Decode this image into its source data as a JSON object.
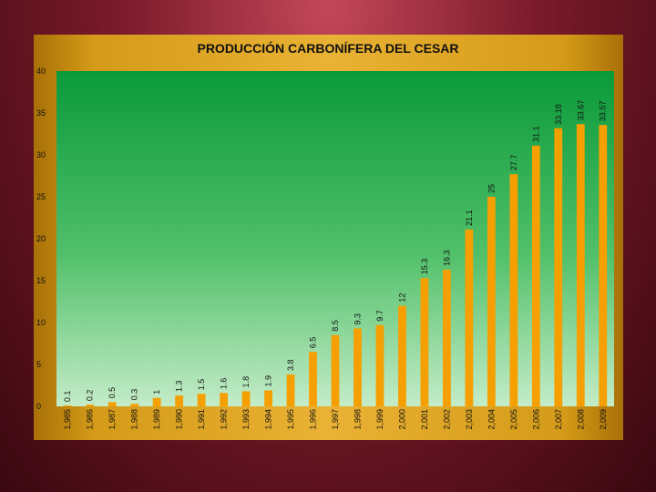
{
  "chart_data": {
    "type": "bar",
    "title": "PRODUCCIÓN CARBONÍFERA DEL CESAR",
    "xlabel": "",
    "ylabel": "",
    "ylim": [
      0,
      40
    ],
    "yticks": [
      0,
      5,
      10,
      15,
      20,
      25,
      30,
      35,
      40
    ],
    "grid": false,
    "legend": "none",
    "categories": [
      "1,985",
      "1,986",
      "1,987",
      "1,988",
      "1,989",
      "1,990",
      "1,991",
      "1,992",
      "1,993",
      "1,994",
      "1,995",
      "1,996",
      "1,997",
      "1,998",
      "1,999",
      "2,000",
      "2,001",
      "2,002",
      "2,003",
      "2,004",
      "2,005",
      "2,006",
      "2,007",
      "2,008",
      "2,009"
    ],
    "values": [
      0.1,
      0.2,
      0.5,
      0.3,
      1,
      1.3,
      1.5,
      1.6,
      1.8,
      1.9,
      3.8,
      6.5,
      8.5,
      9.3,
      9.7,
      12,
      15.3,
      16.3,
      21.1,
      25,
      27.7,
      31.1,
      33.18,
      33.67,
      33.57
    ],
    "data_labels": [
      "0.1",
      "0.2",
      "0.5",
      "0.3",
      "1",
      "1.3",
      "1.5",
      "1.6",
      "1.8",
      "1.9",
      "3.8",
      "6.5",
      "8.5",
      "9.3",
      "9.7",
      "12",
      "15.3",
      "16.3",
      "21.1",
      "25",
      "27.7",
      "31.1",
      "33.18",
      "33.67",
      "33.57"
    ],
    "bar_color": "#f5a000",
    "plot_bg_top": "#0a9a3a",
    "plot_bg_bottom": "#c4ecc8",
    "frame_color": "#e0a828"
  }
}
